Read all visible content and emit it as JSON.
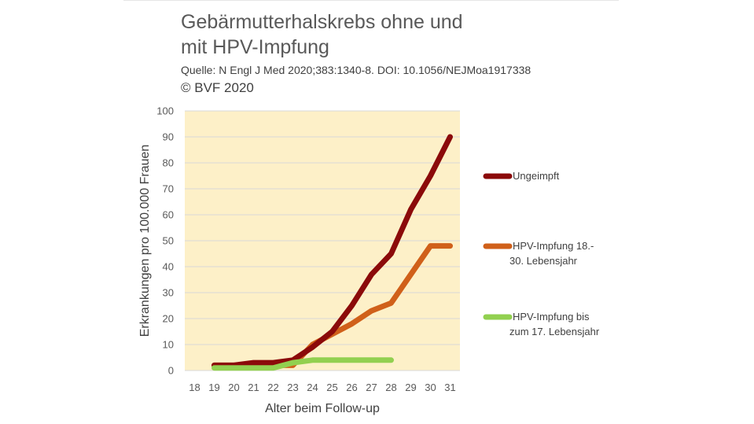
{
  "header": {
    "title_line1": "Gebärmutterhalskrebs ohne und",
    "title_line2": "mit HPV-Impfung",
    "source": "Quelle: N Engl J Med 2020;383:1340-8. DOI: 10.1056/NEJMoa1917338",
    "copyright": "© BVF 2020"
  },
  "chart_data": {
    "type": "line",
    "xlabel": "Alter beim Follow-up",
    "ylabel": "Erkrankungen pro 100.000 Frauen",
    "x": [
      18,
      19,
      20,
      21,
      22,
      23,
      24,
      25,
      26,
      27,
      28,
      29,
      30,
      31
    ],
    "ylim": [
      0,
      100
    ],
    "yticks": [
      0,
      10,
      20,
      30,
      40,
      50,
      60,
      70,
      80,
      90,
      100
    ],
    "grid": true,
    "legend_position": "right",
    "plot_background": "#fdf0c8",
    "series": [
      {
        "name": "Ungeimpft",
        "legend_lines": [
          "Ungeimpft"
        ],
        "color": "#8b0a0a",
        "x": [
          19,
          20,
          21,
          22,
          23,
          24,
          25,
          26,
          27,
          28,
          29,
          30,
          31
        ],
        "values": [
          2,
          2,
          3,
          3,
          4,
          9,
          15,
          25,
          37,
          45,
          62,
          75,
          90
        ]
      },
      {
        "name": "HPV-Impfung 18.-30. Lebensjahr",
        "legend_lines": [
          "HPV-Impfung 18.-",
          "30. Lebensjahr"
        ],
        "color": "#d0601a",
        "x": [
          19,
          20,
          21,
          22,
          23,
          24,
          25,
          26,
          27,
          28,
          29,
          30,
          31
        ],
        "values": [
          2,
          2,
          2,
          2,
          2,
          10,
          14,
          18,
          23,
          26,
          37,
          48,
          48
        ]
      },
      {
        "name": "HPV-Impfung bis zum 17. Lebensjahr",
        "legend_lines": [
          "HPV-Impfung bis",
          "zum 17. Lebensjahr"
        ],
        "color": "#92d050",
        "x": [
          19,
          20,
          21,
          22,
          23,
          24,
          25,
          26,
          27,
          28
        ],
        "values": [
          1,
          1,
          1,
          1,
          3,
          4,
          4,
          4,
          4,
          4
        ]
      }
    ]
  }
}
